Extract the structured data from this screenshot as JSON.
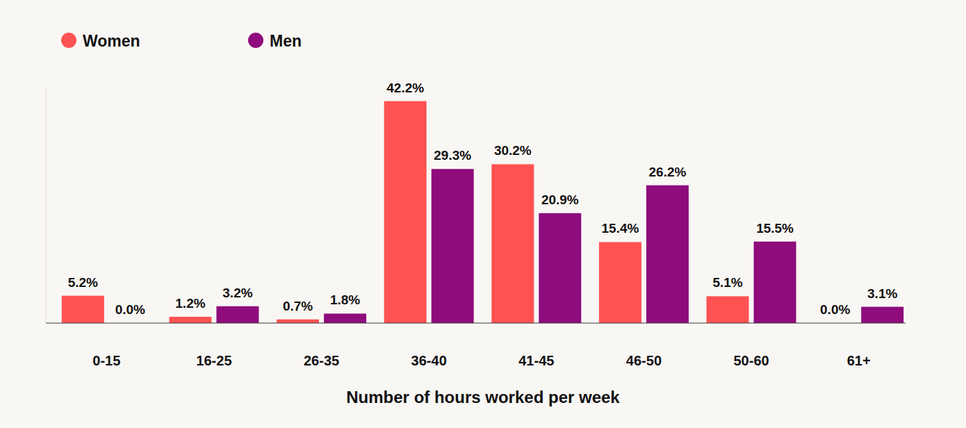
{
  "chart_data": {
    "type": "bar",
    "x_label": "Number of hours worked per week",
    "categories": [
      "0-15",
      "16-25",
      "26-35",
      "36-40",
      "41-45",
      "46-50",
      "50-60",
      "61+"
    ],
    "series": [
      {
        "name": "Women",
        "color": "#ff5252",
        "values": [
          5.2,
          1.2,
          0.7,
          42.2,
          30.2,
          15.4,
          5.1,
          0.0
        ],
        "value_labels": [
          "5.2%",
          "1.2%",
          "0.7%",
          "42.2%",
          "30.2%",
          "15.4%",
          "5.1%",
          "0.0%"
        ]
      },
      {
        "name": "Men",
        "color": "#8e0c7c",
        "values": [
          0.0,
          3.2,
          1.8,
          29.3,
          20.9,
          26.2,
          15.5,
          3.1
        ],
        "value_labels": [
          "0.0%",
          "3.2%",
          "1.8%",
          "29.3%",
          "20.9%",
          "26.2%",
          "15.5%",
          "3.1%"
        ]
      }
    ],
    "ylim": [
      0,
      45
    ],
    "data_labels": true,
    "tick_labels": "x",
    "legend": "top-left",
    "grid": false
  }
}
